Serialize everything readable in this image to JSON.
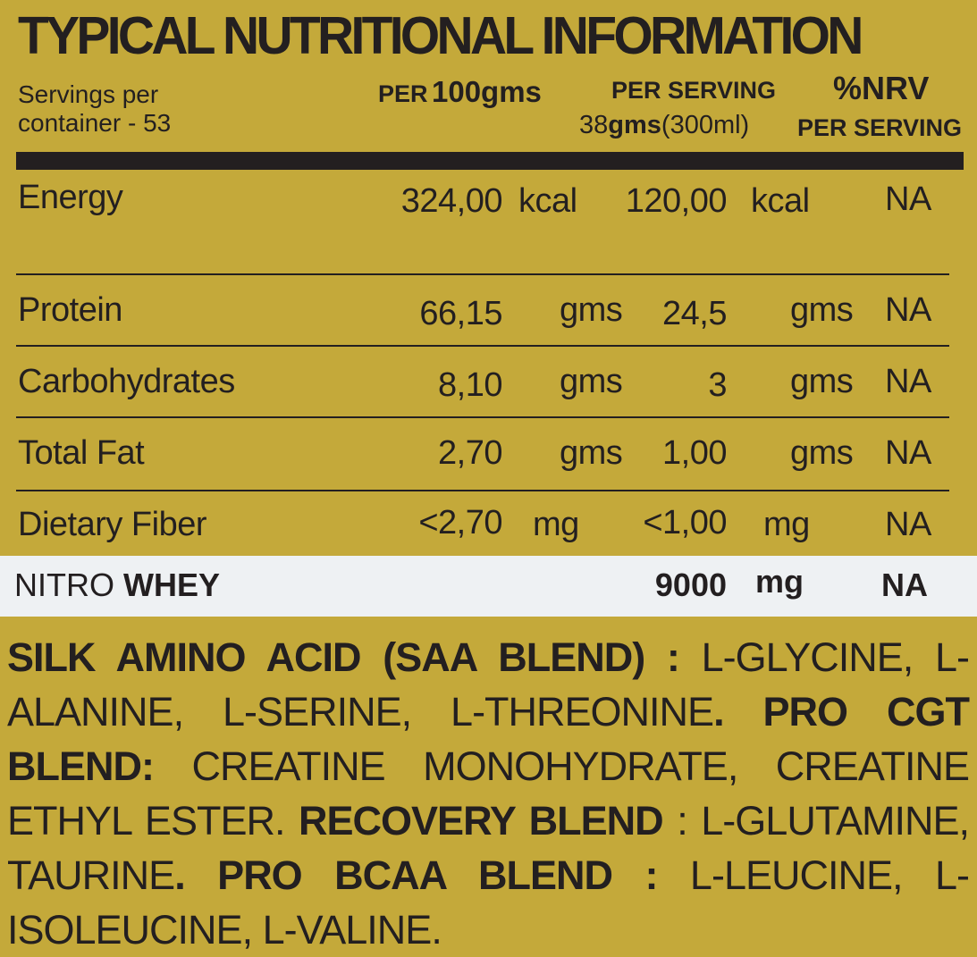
{
  "title": "TYPICAL NUTRITIONAL INFORMATION",
  "servings_line1": "Servings per",
  "servings_line2": "container - 53",
  "col_per100_a": "PER",
  "col_per100_b": "100gms",
  "col_serving_a": "PER SERVING",
  "col_serving_b_num": "38",
  "col_serving_b_unit": "gms",
  "col_serving_b_vol": "(300ml)",
  "col_nrv_a": "%NRV",
  "col_nrv_b": "PER SERVING",
  "rows": [
    {
      "name": "Energy",
      "v100": "324,00",
      "u100": "kcal",
      "vserv": "120,00",
      "userv": "kcal",
      "nrv": "NA"
    },
    {
      "name": "Protein",
      "v100": "66,15",
      "u100": "gms",
      "vserv": "24,5",
      "userv": "gms",
      "nrv": "NA"
    },
    {
      "name": "Carbohydrates",
      "v100": "8,10",
      "u100": "gms",
      "vserv": "3",
      "userv": "gms",
      "nrv": "NA"
    },
    {
      "name": "Total Fat",
      "v100": "2,70",
      "u100": "gms",
      "vserv": "1,00",
      "userv": "gms",
      "nrv": "NA"
    },
    {
      "name": "Dietary Fiber",
      "v100": "<2,70",
      "u100": "mg",
      "vserv": "<1,00",
      "userv": "mg",
      "nrv": "NA"
    }
  ],
  "nitro": {
    "name_a": "NITRO",
    "name_b": "WHEY",
    "value": "9000",
    "unit": "mg",
    "nrv": "NA"
  },
  "ingredients": {
    "saa_label": "SILK AMINO ACID (SAA BLEND) :",
    "saa_items": " L-GLYCINE, L-ALANINE, L-SERINE, L-THREONINE",
    "cgt_label": ". PRO CGT BLEND:",
    "cgt_items": " CREATINE MONOHYDRATE, CREATINE ETHYL ESTER.",
    "rec_label": "RECOVERY BLEND",
    "rec_items": " : L-GLUTAMINE, TAURINE",
    "bcaa_label": ". PRO BCAA BLEND :",
    "bcaa_items": " L-LEUCINE, L-ISOLEUCINE, L-VALINE."
  }
}
